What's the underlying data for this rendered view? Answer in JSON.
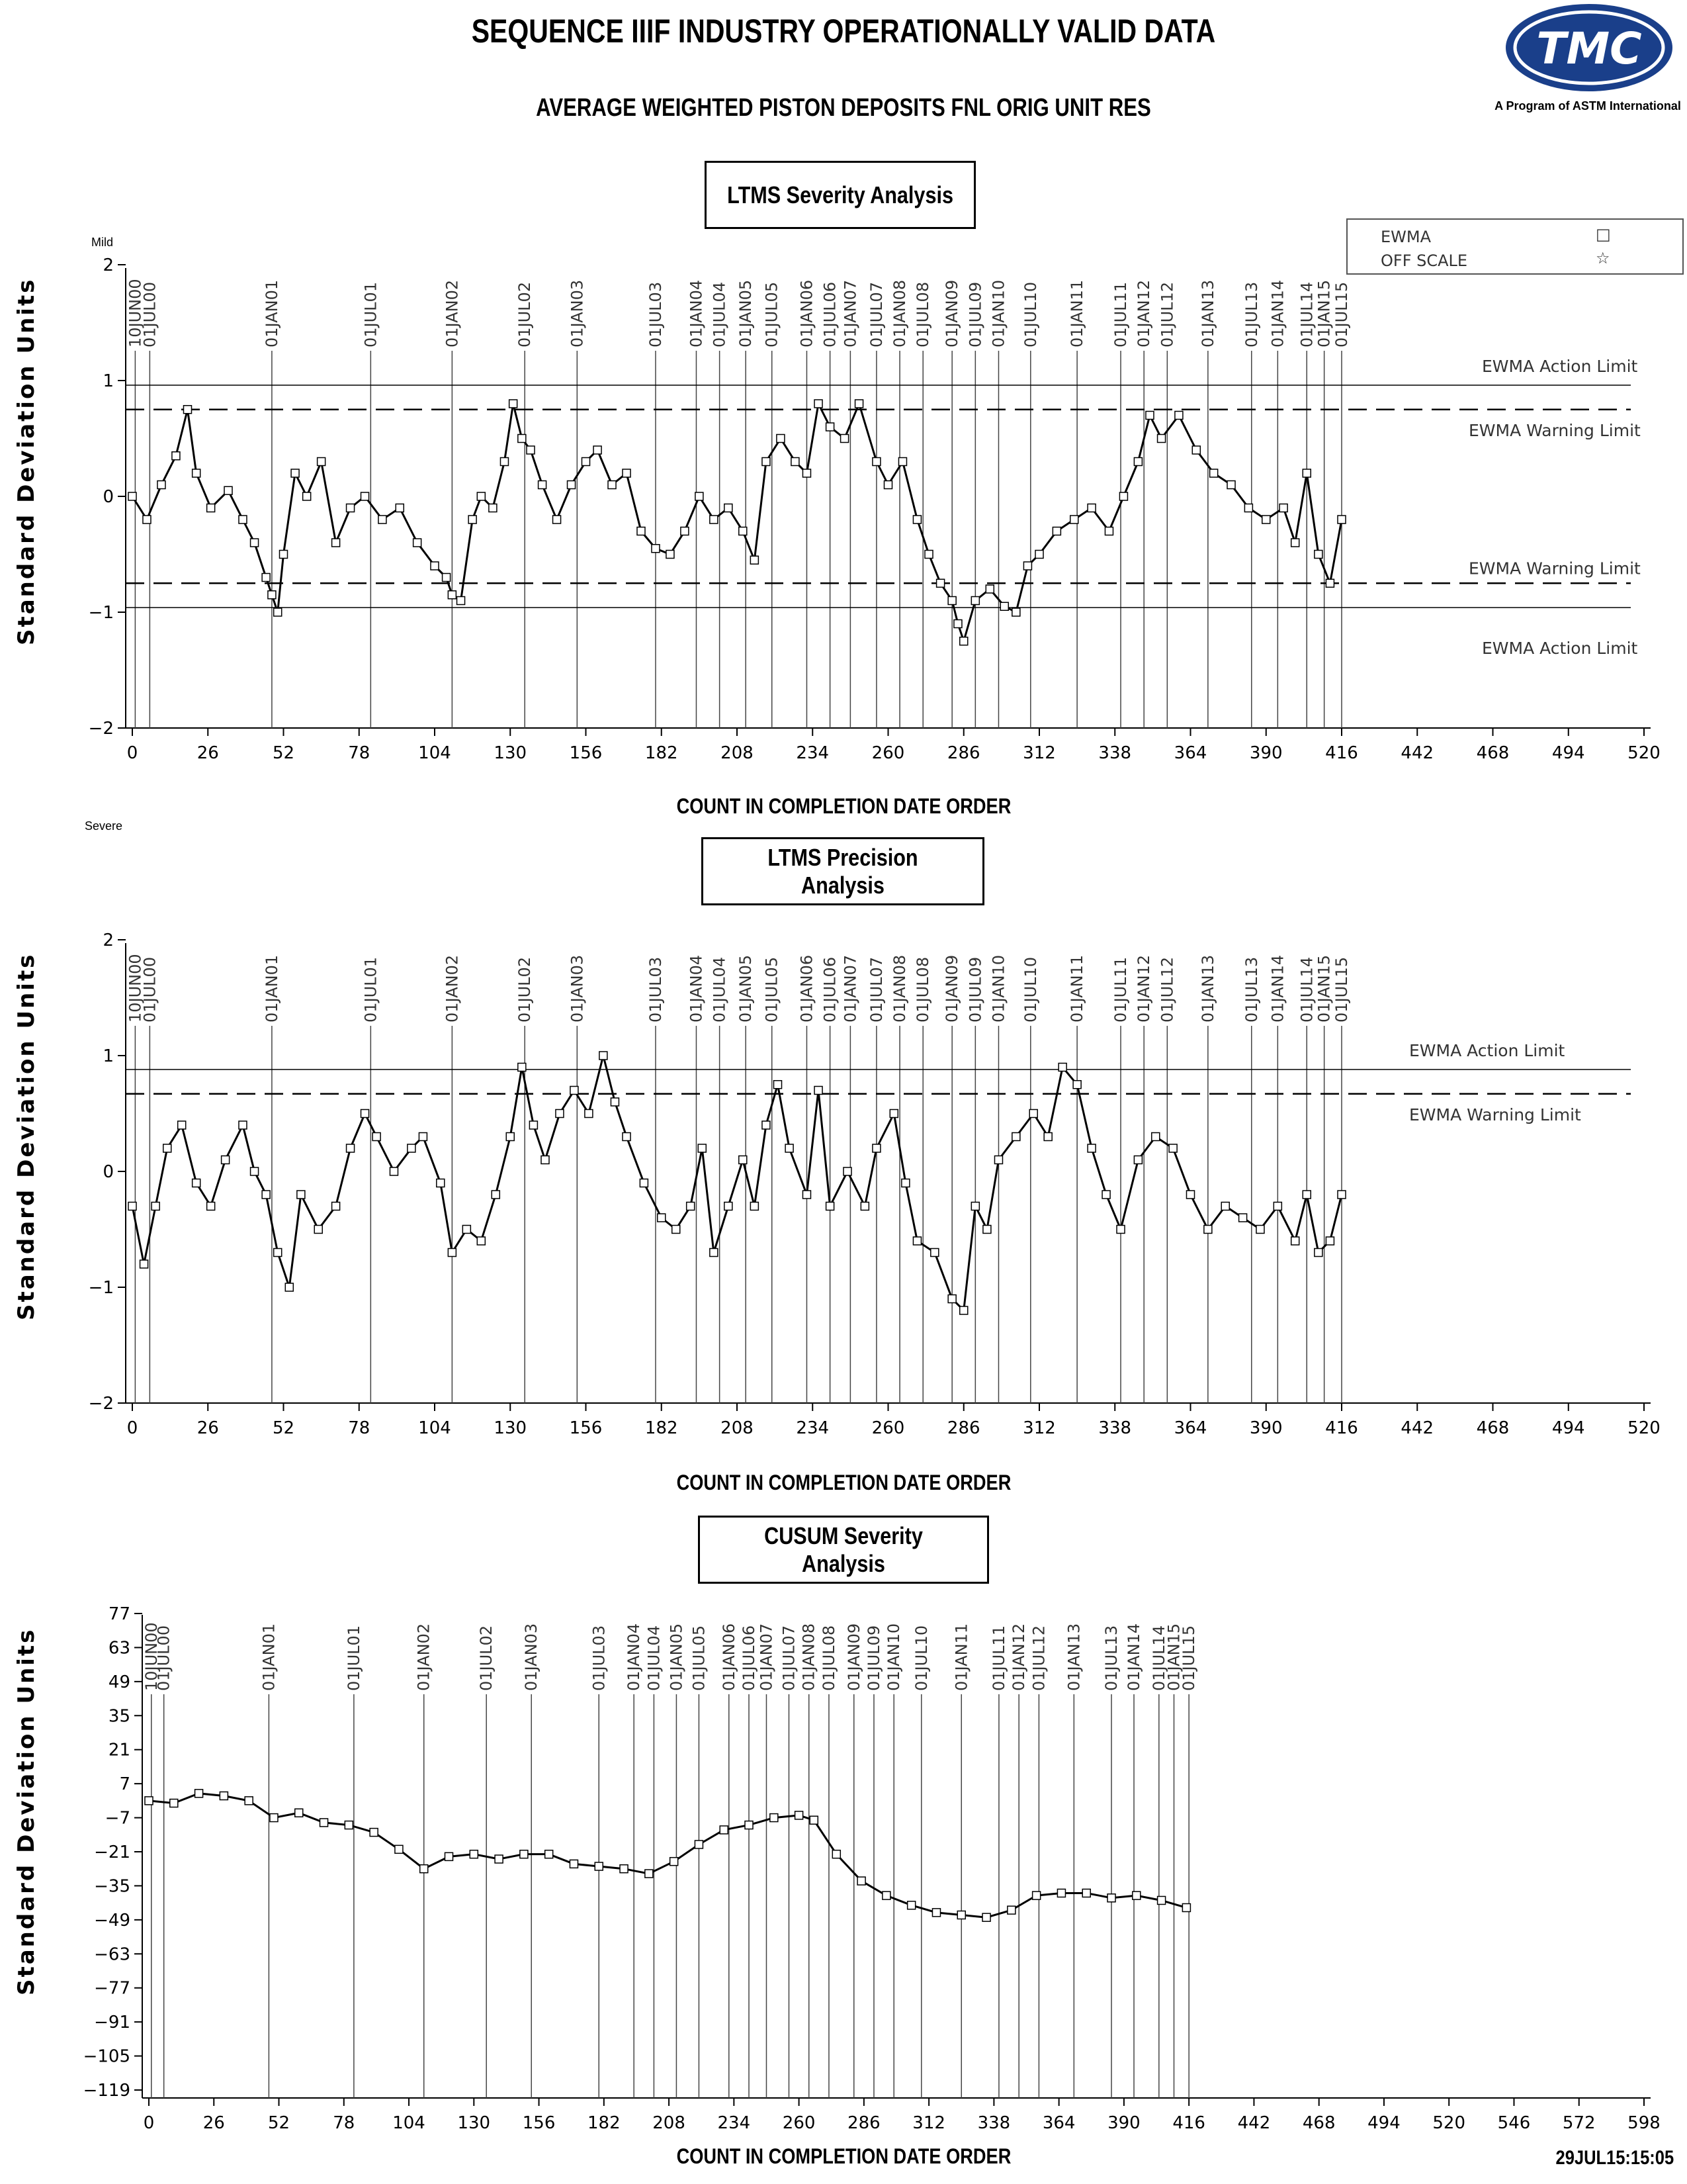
{
  "header": {
    "title": "SEQUENCE IIIF INDUSTRY OPERATIONALLY VALID DATA",
    "subtitle": "AVERAGE WEIGHTED PISTON DEPOSITS FNL ORIG UNIT RES",
    "logo_text": "TMC",
    "logo_caption": "A Program of ASTM International"
  },
  "legend": {
    "items": [
      {
        "label": "EWMA",
        "symbol": "□"
      },
      {
        "label": "OFF SCALE",
        "symbol": "☆"
      }
    ]
  },
  "timestamp": "29JUL15:15:05",
  "chart_data": [
    {
      "type": "line",
      "title": "LTMS Severity Analysis",
      "xlabel": "COUNT IN COMPLETION DATE ORDER",
      "ylabel": "Standard Deviation Units",
      "top_corner_label": "Mild",
      "bottom_corner_label": "Severe",
      "xlim": [
        0,
        520
      ],
      "ylim": [
        -2,
        2
      ],
      "xticks": [
        0,
        26,
        52,
        78,
        104,
        130,
        156,
        182,
        208,
        234,
        260,
        286,
        312,
        338,
        364,
        390,
        416,
        442,
        468,
        494,
        520
      ],
      "yticks": [
        -2,
        -1,
        0,
        1,
        2
      ],
      "reference_lines": [
        {
          "label": "EWMA Action Limit",
          "y": 0.96,
          "style": "solid"
        },
        {
          "label": "EWMA Warning Limit",
          "y": 0.75,
          "style": "dashed"
        },
        {
          "label": "EWMA Warning Limit",
          "y": -0.75,
          "style": "dashed"
        },
        {
          "label": "EWMA Action Limit",
          "y": -0.96,
          "style": "solid"
        }
      ],
      "date_markers": [
        {
          "label": "10JUN00",
          "x": 1
        },
        {
          "label": "01JUL00",
          "x": 6
        },
        {
          "label": "01JAN01",
          "x": 48
        },
        {
          "label": "01JUL01",
          "x": 82
        },
        {
          "label": "01JAN02",
          "x": 110
        },
        {
          "label": "01JUL02",
          "x": 135
        },
        {
          "label": "01JAN03",
          "x": 153
        },
        {
          "label": "01JUL03",
          "x": 180
        },
        {
          "label": "01JAN04",
          "x": 194
        },
        {
          "label": "01JUL04",
          "x": 202
        },
        {
          "label": "01JAN05",
          "x": 211
        },
        {
          "label": "01JUL05",
          "x": 220
        },
        {
          "label": "01JAN06",
          "x": 232
        },
        {
          "label": "01JUL06",
          "x": 240
        },
        {
          "label": "01JAN07",
          "x": 247
        },
        {
          "label": "01JUL07",
          "x": 256
        },
        {
          "label": "01JAN08",
          "x": 264
        },
        {
          "label": "01JUL08",
          "x": 272
        },
        {
          "label": "01JAN09",
          "x": 282
        },
        {
          "label": "01JUL09",
          "x": 290
        },
        {
          "label": "01JAN10",
          "x": 298
        },
        {
          "label": "01JUL10",
          "x": 309
        },
        {
          "label": "01JAN11",
          "x": 325
        },
        {
          "label": "01JUL11",
          "x": 340
        },
        {
          "label": "01JAN12",
          "x": 348
        },
        {
          "label": "01JUL12",
          "x": 356
        },
        {
          "label": "01JAN13",
          "x": 370
        },
        {
          "label": "01JUL13",
          "x": 385
        },
        {
          "label": "01JAN14",
          "x": 394
        },
        {
          "label": "01JUL14",
          "x": 404
        },
        {
          "label": "01JAN15",
          "x": 410
        },
        {
          "label": "01JUL15",
          "x": 416
        }
      ],
      "series": [
        {
          "x": [
            0,
            5,
            10,
            15,
            19,
            22,
            27,
            33,
            38,
            42,
            46,
            48,
            50,
            52,
            56,
            60,
            65,
            70,
            75,
            80,
            86,
            92,
            98,
            104,
            108,
            110,
            113,
            117,
            120,
            124,
            128,
            131,
            134,
            137,
            141,
            146,
            151,
            156,
            160,
            165,
            170,
            175,
            180,
            185,
            190,
            195,
            200,
            205,
            210,
            214,
            218,
            223,
            228,
            232,
            236,
            240,
            245,
            250,
            256,
            260,
            265,
            270,
            274,
            278,
            282,
            284,
            286,
            290,
            295,
            300,
            304,
            308,
            312,
            318,
            324,
            330,
            336,
            341,
            346,
            350,
            354,
            360,
            366,
            372,
            378,
            384,
            390,
            396,
            400,
            404,
            408,
            412,
            416
          ],
          "values": [
            0.0,
            -0.2,
            0.1,
            0.35,
            0.75,
            0.2,
            -0.1,
            0.05,
            -0.2,
            -0.4,
            -0.7,
            -0.85,
            -1.0,
            -0.5,
            0.2,
            0.0,
            0.3,
            -0.4,
            -0.1,
            0.0,
            -0.2,
            -0.1,
            -0.4,
            -0.6,
            -0.7,
            -0.85,
            -0.9,
            -0.2,
            0.0,
            -0.1,
            0.3,
            0.8,
            0.5,
            0.4,
            0.1,
            -0.2,
            0.1,
            0.3,
            0.4,
            0.1,
            0.2,
            -0.3,
            -0.45,
            -0.5,
            -0.3,
            0.0,
            -0.2,
            -0.1,
            -0.3,
            -0.55,
            0.3,
            0.5,
            0.3,
            0.2,
            0.8,
            0.6,
            0.5,
            0.8,
            0.3,
            0.1,
            0.3,
            -0.2,
            -0.5,
            -0.75,
            -0.9,
            -1.1,
            -1.25,
            -0.9,
            -0.8,
            -0.95,
            -1.0,
            -0.6,
            -0.5,
            -0.3,
            -0.2,
            -0.1,
            -0.3,
            0.0,
            0.3,
            0.7,
            0.5,
            0.7,
            0.4,
            0.2,
            0.1,
            -0.1,
            -0.2,
            -0.1,
            -0.4,
            0.2,
            -0.5,
            -0.75,
            -0.2
          ]
        }
      ]
    },
    {
      "type": "line",
      "title": "LTMS Precision Analysis",
      "xlabel": "COUNT IN COMPLETION DATE ORDER",
      "ylabel": "Standard Deviation Units",
      "xlim": [
        0,
        520
      ],
      "ylim": [
        -2,
        2
      ],
      "xticks": [
        0,
        26,
        52,
        78,
        104,
        130,
        156,
        182,
        208,
        234,
        260,
        286,
        312,
        338,
        364,
        390,
        416,
        442,
        468,
        494,
        520
      ],
      "yticks": [
        -2,
        -1,
        0,
        1,
        2
      ],
      "reference_lines": [
        {
          "label": "EWMA Action Limit",
          "y": 0.88,
          "style": "solid"
        },
        {
          "label": "EWMA Warning Limit",
          "y": 0.67,
          "style": "dashed"
        }
      ],
      "date_markers": [
        {
          "label": "10JUN00",
          "x": 1
        },
        {
          "label": "01JUL00",
          "x": 6
        },
        {
          "label": "01JAN01",
          "x": 48
        },
        {
          "label": "01JUL01",
          "x": 82
        },
        {
          "label": "01JAN02",
          "x": 110
        },
        {
          "label": "01JUL02",
          "x": 135
        },
        {
          "label": "01JAN03",
          "x": 153
        },
        {
          "label": "01JUL03",
          "x": 180
        },
        {
          "label": "01JAN04",
          "x": 194
        },
        {
          "label": "01JUL04",
          "x": 202
        },
        {
          "label": "01JAN05",
          "x": 211
        },
        {
          "label": "01JUL05",
          "x": 220
        },
        {
          "label": "01JAN06",
          "x": 232
        },
        {
          "label": "01JUL06",
          "x": 240
        },
        {
          "label": "01JAN07",
          "x": 247
        },
        {
          "label": "01JUL07",
          "x": 256
        },
        {
          "label": "01JAN08",
          "x": 264
        },
        {
          "label": "01JUL08",
          "x": 272
        },
        {
          "label": "01JAN09",
          "x": 282
        },
        {
          "label": "01JUL09",
          "x": 290
        },
        {
          "label": "01JAN10",
          "x": 298
        },
        {
          "label": "01JUL10",
          "x": 309
        },
        {
          "label": "01JAN11",
          "x": 325
        },
        {
          "label": "01JUL11",
          "x": 340
        },
        {
          "label": "01JAN12",
          "x": 348
        },
        {
          "label": "01JUL12",
          "x": 356
        },
        {
          "label": "01JAN13",
          "x": 370
        },
        {
          "label": "01JUL13",
          "x": 385
        },
        {
          "label": "01JAN14",
          "x": 394
        },
        {
          "label": "01JUL14",
          "x": 404
        },
        {
          "label": "01JAN15",
          "x": 410
        },
        {
          "label": "01JUL15",
          "x": 416
        }
      ],
      "series": [
        {
          "x": [
            0,
            4,
            8,
            12,
            17,
            22,
            27,
            32,
            38,
            42,
            46,
            50,
            54,
            58,
            64,
            70,
            75,
            80,
            84,
            90,
            96,
            100,
            106,
            110,
            115,
            120,
            125,
            130,
            134,
            138,
            142,
            147,
            152,
            157,
            162,
            166,
            170,
            176,
            182,
            187,
            192,
            196,
            200,
            205,
            210,
            214,
            218,
            222,
            226,
            232,
            236,
            240,
            246,
            252,
            256,
            262,
            266,
            270,
            276,
            282,
            286,
            290,
            294,
            298,
            304,
            310,
            315,
            320,
            325,
            330,
            335,
            340,
            346,
            352,
            358,
            364,
            370,
            376,
            382,
            388,
            394,
            400,
            404,
            408,
            412,
            416
          ],
          "values": [
            -0.3,
            -0.8,
            -0.3,
            0.2,
            0.4,
            -0.1,
            -0.3,
            0.1,
            0.4,
            0.0,
            -0.2,
            -0.7,
            -1.0,
            -0.2,
            -0.5,
            -0.3,
            0.2,
            0.5,
            0.3,
            0.0,
            0.2,
            0.3,
            -0.1,
            -0.7,
            -0.5,
            -0.6,
            -0.2,
            0.3,
            0.9,
            0.4,
            0.1,
            0.5,
            0.7,
            0.5,
            1.0,
            0.6,
            0.3,
            -0.1,
            -0.4,
            -0.5,
            -0.3,
            0.2,
            -0.7,
            -0.3,
            0.1,
            -0.3,
            0.4,
            0.75,
            0.2,
            -0.2,
            0.7,
            -0.3,
            0.0,
            -0.3,
            0.2,
            0.5,
            -0.1,
            -0.6,
            -0.7,
            -1.1,
            -1.2,
            -0.3,
            -0.5,
            0.1,
            0.3,
            0.5,
            0.3,
            0.9,
            0.75,
            0.2,
            -0.2,
            -0.5,
            0.1,
            0.3,
            0.2,
            -0.2,
            -0.5,
            -0.3,
            -0.4,
            -0.5,
            -0.3,
            -0.6,
            -0.2,
            -0.7,
            -0.6,
            -0.2
          ]
        }
      ]
    },
    {
      "type": "line",
      "title": "CUSUM Severity Analysis",
      "xlabel": "COUNT IN COMPLETION DATE ORDER",
      "ylabel": "Standard Deviation Units",
      "xlim": [
        0,
        598
      ],
      "ylim": [
        -119,
        77
      ],
      "xticks": [
        0,
        26,
        52,
        78,
        104,
        130,
        156,
        182,
        208,
        234,
        260,
        286,
        312,
        338,
        364,
        390,
        416,
        442,
        468,
        494,
        520,
        546,
        572,
        598
      ],
      "yticks": [
        77,
        63,
        49,
        35,
        21,
        7,
        -7,
        -21,
        -35,
        -49,
        -63,
        -77,
        -91,
        -105,
        -119
      ],
      "date_markers": [
        {
          "label": "10JUN00",
          "x": 1
        },
        {
          "label": "01JUL00",
          "x": 6
        },
        {
          "label": "01JAN01",
          "x": 48
        },
        {
          "label": "01JUL01",
          "x": 82
        },
        {
          "label": "01JAN02",
          "x": 110
        },
        {
          "label": "01JUL02",
          "x": 135
        },
        {
          "label": "01JAN03",
          "x": 153
        },
        {
          "label": "01JUL03",
          "x": 180
        },
        {
          "label": "01JAN04",
          "x": 194
        },
        {
          "label": "01JUL04",
          "x": 202
        },
        {
          "label": "01JAN05",
          "x": 211
        },
        {
          "label": "01JUL05",
          "x": 220
        },
        {
          "label": "01JAN06",
          "x": 232
        },
        {
          "label": "01JUL06",
          "x": 240
        },
        {
          "label": "01JAN07",
          "x": 247
        },
        {
          "label": "01JUL07",
          "x": 256
        },
        {
          "label": "01JAN08",
          "x": 264
        },
        {
          "label": "01JUL08",
          "x": 272
        },
        {
          "label": "01JAN09",
          "x": 282
        },
        {
          "label": "01JUL09",
          "x": 290
        },
        {
          "label": "01JAN10",
          "x": 298
        },
        {
          "label": "01JUL10",
          "x": 309
        },
        {
          "label": "01JAN11",
          "x": 325
        },
        {
          "label": "01JUL11",
          "x": 340
        },
        {
          "label": "01JAN12",
          "x": 348
        },
        {
          "label": "01JUL12",
          "x": 356
        },
        {
          "label": "01JAN13",
          "x": 370
        },
        {
          "label": "01JUL13",
          "x": 385
        },
        {
          "label": "01JAN14",
          "x": 394
        },
        {
          "label": "01JUL14",
          "x": 404
        },
        {
          "label": "01JAN15",
          "x": 410
        },
        {
          "label": "01JUL15",
          "x": 416
        }
      ],
      "series": [
        {
          "x": [
            0,
            10,
            20,
            30,
            40,
            50,
            60,
            70,
            80,
            90,
            100,
            110,
            120,
            130,
            140,
            150,
            160,
            170,
            180,
            190,
            200,
            210,
            220,
            230,
            240,
            250,
            260,
            266,
            275,
            285,
            295,
            305,
            315,
            325,
            335,
            345,
            355,
            365,
            375,
            385,
            395,
            405,
            415
          ],
          "values": [
            0,
            -1,
            3,
            2,
            0,
            -7,
            -5,
            -9,
            -10,
            -13,
            -20,
            -28,
            -23,
            -22,
            -24,
            -22,
            -22,
            -26,
            -27,
            -28,
            -30,
            -25,
            -18,
            -12,
            -10,
            -7,
            -6,
            -8,
            -22,
            -33,
            -39,
            -43,
            -46,
            -47,
            -48,
            -45,
            -39,
            -38,
            -38,
            -40,
            -39,
            -41,
            -44
          ]
        }
      ]
    }
  ]
}
